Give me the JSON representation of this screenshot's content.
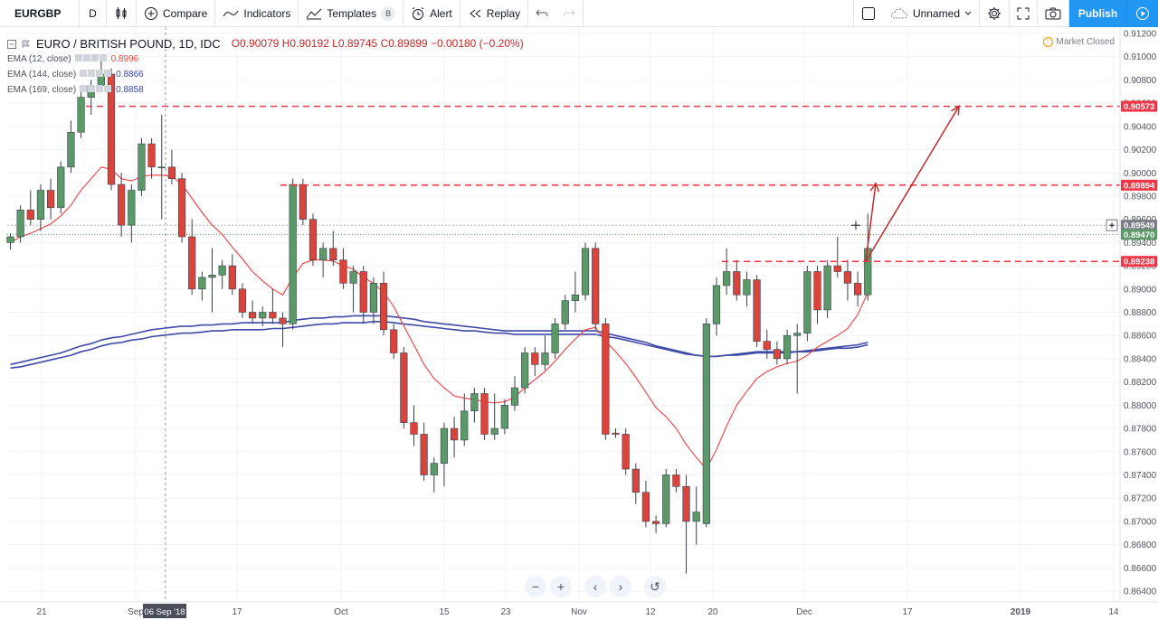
{
  "toolbar": {
    "symbol": "EURGBP",
    "interval": "D",
    "compare": "Compare",
    "indicators": "Indicators",
    "templates": "Templates",
    "templates_badge": "B",
    "alert": "Alert",
    "replay": "Replay",
    "layout_name": "Unnamed",
    "publish": "Publish"
  },
  "legend": {
    "title": "EURO / BRITISH POUND, 1D, IDC",
    "open": "O0.90079",
    "high": "H0.90192",
    "low": "L0.89745",
    "close": "C0.89899",
    "change": "−0.00180 (−0.20%)",
    "ema": [
      {
        "label": "EMA (12, close)",
        "value": "0.8996",
        "color": "#f44336"
      },
      {
        "label": "EMA (144, close)",
        "value": "0.8866",
        "color": "#3949ab"
      },
      {
        "label": "EMA (169, close)",
        "value": "0.8858",
        "color": "#3949ab"
      }
    ]
  },
  "market_status": "Market Closed",
  "colors": {
    "up": "#5b9a68",
    "down": "#d9453d",
    "ema12": "#f23e3e",
    "ema_long": "#3e4aa8",
    "accent": "#2196f3",
    "level": "#f23645"
  },
  "chart_data": {
    "type": "candlestick",
    "symbol": "EURGBP",
    "ylim": [
      0.864,
      0.912
    ],
    "y_ticks": [
      "0.86400",
      "0.86600",
      "0.86800",
      "0.87000",
      "0.87200",
      "0.87400",
      "0.87600",
      "0.87800",
      "0.88000",
      "0.88200",
      "0.88400",
      "0.88600",
      "0.88800",
      "0.89000",
      "0.89200",
      "0.89400",
      "0.89600",
      "0.89800",
      "0.90000",
      "0.90200",
      "0.90400",
      "0.90600",
      "0.90800",
      "0.91000",
      "0.91200"
    ],
    "x_ticks": [
      "21",
      "Sep",
      "17",
      "Oct",
      "15",
      "23",
      "Nov",
      "12",
      "20",
      "Dec",
      "17",
      "2019",
      "14"
    ],
    "crosshair_date": "06 Sep '18",
    "price_labels": [
      {
        "text": "0.90573",
        "value": 0.90573,
        "color": "#f23645"
      },
      {
        "text": "0.89894",
        "value": 0.89894,
        "color": "#f23645"
      },
      {
        "text": "0.89549",
        "value": 0.89549,
        "color": "#787b86"
      },
      {
        "text": "0.89470",
        "value": 0.8947,
        "color": "#5b9a68"
      },
      {
        "text": "0.89238",
        "value": 0.89238,
        "color": "#f23645"
      }
    ],
    "levels": [
      0.90573,
      0.89894,
      0.89238
    ],
    "candles": [
      [
        0.894,
        0.8948,
        0.8934,
        0.8945
      ],
      [
        0.8945,
        0.8972,
        0.894,
        0.8968
      ],
      [
        0.8968,
        0.8985,
        0.8955,
        0.896
      ],
      [
        0.896,
        0.899,
        0.895,
        0.8985
      ],
      [
        0.8985,
        0.8995,
        0.896,
        0.897
      ],
      [
        0.897,
        0.901,
        0.8965,
        0.9005
      ],
      [
        0.9005,
        0.9045,
        0.9,
        0.9035
      ],
      [
        0.9035,
        0.907,
        0.903,
        0.9065
      ],
      [
        0.9065,
        0.908,
        0.905,
        0.9075
      ],
      [
        0.9075,
        0.91,
        0.907,
        0.9085
      ],
      [
        0.9085,
        0.909,
        0.8985,
        0.899
      ],
      [
        0.899,
        0.9,
        0.8945,
        0.8955
      ],
      [
        0.8955,
        0.899,
        0.894,
        0.8985
      ],
      [
        0.8985,
        0.903,
        0.898,
        0.9025
      ],
      [
        0.9025,
        0.903,
        0.8995,
        0.9005
      ],
      [
        0.9005,
        0.905,
        0.896,
        0.9005
      ],
      [
        0.9005,
        0.902,
        0.899,
        0.8995
      ],
      [
        0.8995,
        0.9,
        0.894,
        0.8945
      ],
      [
        0.8945,
        0.896,
        0.8895,
        0.89
      ],
      [
        0.89,
        0.8915,
        0.889,
        0.891
      ],
      [
        0.891,
        0.8935,
        0.888,
        0.8912
      ],
      [
        0.8912,
        0.8925,
        0.89,
        0.892
      ],
      [
        0.892,
        0.893,
        0.8895,
        0.89
      ],
      [
        0.89,
        0.8905,
        0.8875,
        0.888
      ],
      [
        0.888,
        0.889,
        0.887,
        0.8875
      ],
      [
        0.8875,
        0.8885,
        0.8868,
        0.888
      ],
      [
        0.888,
        0.89,
        0.887,
        0.8875
      ],
      [
        0.8875,
        0.888,
        0.885,
        0.887
      ],
      [
        0.887,
        0.8995,
        0.8865,
        0.899
      ],
      [
        0.899,
        0.8995,
        0.8955,
        0.896
      ],
      [
        0.896,
        0.8965,
        0.892,
        0.8925
      ],
      [
        0.8925,
        0.894,
        0.891,
        0.8935
      ],
      [
        0.8935,
        0.895,
        0.892,
        0.8925
      ],
      [
        0.8925,
        0.8935,
        0.89,
        0.8905
      ],
      [
        0.8905,
        0.892,
        0.888,
        0.8915
      ],
      [
        0.8915,
        0.892,
        0.887,
        0.888
      ],
      [
        0.888,
        0.891,
        0.887,
        0.8905
      ],
      [
        0.8905,
        0.8915,
        0.886,
        0.8865
      ],
      [
        0.8865,
        0.887,
        0.884,
        0.8845
      ],
      [
        0.8845,
        0.885,
        0.878,
        0.8785
      ],
      [
        0.8785,
        0.88,
        0.8765,
        0.8775
      ],
      [
        0.8775,
        0.8785,
        0.8735,
        0.874
      ],
      [
        0.874,
        0.8755,
        0.8725,
        0.875
      ],
      [
        0.875,
        0.8785,
        0.873,
        0.878
      ],
      [
        0.878,
        0.879,
        0.8755,
        0.877
      ],
      [
        0.877,
        0.881,
        0.8765,
        0.8795
      ],
      [
        0.8795,
        0.8815,
        0.8785,
        0.881
      ],
      [
        0.881,
        0.8815,
        0.877,
        0.8775
      ],
      [
        0.8775,
        0.881,
        0.877,
        0.878
      ],
      [
        0.878,
        0.8805,
        0.8775,
        0.88
      ],
      [
        0.88,
        0.8825,
        0.8795,
        0.8815
      ],
      [
        0.8815,
        0.885,
        0.881,
        0.8845
      ],
      [
        0.8845,
        0.885,
        0.8825,
        0.8835
      ],
      [
        0.8835,
        0.886,
        0.883,
        0.8845
      ],
      [
        0.8845,
        0.8875,
        0.884,
        0.887
      ],
      [
        0.887,
        0.8895,
        0.8865,
        0.889
      ],
      [
        0.889,
        0.8915,
        0.888,
        0.8895
      ],
      [
        0.8895,
        0.894,
        0.889,
        0.8935
      ],
      [
        0.8935,
        0.894,
        0.8865,
        0.887
      ],
      [
        0.887,
        0.8875,
        0.877,
        0.8775
      ],
      [
        0.8776,
        0.878,
        0.8772,
        0.8775
      ],
      [
        0.8775,
        0.878,
        0.874,
        0.8745
      ],
      [
        0.8745,
        0.875,
        0.8715,
        0.8725
      ],
      [
        0.8725,
        0.8735,
        0.8695,
        0.87
      ],
      [
        0.87,
        0.8705,
        0.869,
        0.8698
      ],
      [
        0.8698,
        0.8745,
        0.8695,
        0.874
      ],
      [
        0.874,
        0.8745,
        0.8725,
        0.873
      ],
      [
        0.873,
        0.874,
        0.8655,
        0.87
      ],
      [
        0.87,
        0.873,
        0.868,
        0.8708
      ],
      [
        0.8698,
        0.8875,
        0.8695,
        0.887
      ],
      [
        0.887,
        0.891,
        0.886,
        0.8903
      ],
      [
        0.8903,
        0.8935,
        0.8895,
        0.8915
      ],
      [
        0.8915,
        0.8925,
        0.889,
        0.8895
      ],
      [
        0.8895,
        0.8915,
        0.8885,
        0.8908
      ],
      [
        0.8908,
        0.8912,
        0.885,
        0.8855
      ],
      [
        0.8855,
        0.8865,
        0.884,
        0.8848
      ],
      [
        0.8848,
        0.8855,
        0.8835,
        0.884
      ],
      [
        0.884,
        0.8865,
        0.8835,
        0.886
      ],
      [
        0.886,
        0.887,
        0.881,
        0.8862
      ],
      [
        0.8862,
        0.892,
        0.8855,
        0.8915
      ],
      [
        0.8915,
        0.892,
        0.887,
        0.8882
      ],
      [
        0.8882,
        0.8925,
        0.8875,
        0.892
      ],
      [
        0.892,
        0.8945,
        0.891,
        0.8915
      ],
      [
        0.8915,
        0.8925,
        0.889,
        0.8905
      ],
      [
        0.8905,
        0.8915,
        0.8885,
        0.8895
      ],
      [
        0.8895,
        0.8965,
        0.889,
        0.8935
      ]
    ],
    "ema12": [
      0.894,
      0.8945,
      0.8948,
      0.8952,
      0.8956,
      0.8963,
      0.8972,
      0.8985,
      0.8995,
      0.9005,
      0.9003,
      0.8995,
      0.8993,
      0.8997,
      0.8998,
      0.8998,
      0.8997,
      0.899,
      0.8978,
      0.8966,
      0.8955,
      0.8947,
      0.8936,
      0.8926,
      0.8915,
      0.8907,
      0.89,
      0.8895,
      0.891,
      0.8922,
      0.8925,
      0.8925,
      0.8924,
      0.892,
      0.8917,
      0.891,
      0.8905,
      0.8897,
      0.8885,
      0.8868,
      0.8852,
      0.8835,
      0.8823,
      0.8815,
      0.8808,
      0.8806,
      0.8805,
      0.8803,
      0.8802,
      0.8803,
      0.8807,
      0.8815,
      0.8822,
      0.8829,
      0.8838,
      0.8848,
      0.8857,
      0.8865,
      0.8867,
      0.8855,
      0.8846,
      0.8836,
      0.8824,
      0.8811,
      0.8798,
      0.879,
      0.878,
      0.8766,
      0.8755,
      0.8745,
      0.8762,
      0.8782,
      0.88,
      0.8812,
      0.8823,
      0.8829,
      0.8833,
      0.8836,
      0.8838,
      0.8843,
      0.885,
      0.8855,
      0.886,
      0.8866,
      0.8878,
      0.8897
    ],
    "ema144": [
      0.8835,
      0.8837,
      0.8839,
      0.8841,
      0.8843,
      0.8845,
      0.8848,
      0.8851,
      0.8853,
      0.8856,
      0.8858,
      0.8859,
      0.8861,
      0.8863,
      0.8865,
      0.8866,
      0.8867,
      0.8868,
      0.8868,
      0.8869,
      0.8869,
      0.887,
      0.887,
      0.8871,
      0.8871,
      0.8871,
      0.8871,
      0.8871,
      0.8873,
      0.8874,
      0.8875,
      0.8875,
      0.8876,
      0.8876,
      0.8877,
      0.8877,
      0.8877,
      0.8877,
      0.8876,
      0.8875,
      0.8874,
      0.8872,
      0.8871,
      0.887,
      0.8869,
      0.8868,
      0.8867,
      0.8866,
      0.8865,
      0.8864,
      0.8864,
      0.8864,
      0.8864,
      0.8864,
      0.8864,
      0.8864,
      0.8864,
      0.8864,
      0.8864,
      0.8862,
      0.886,
      0.8858,
      0.8856,
      0.8854,
      0.8851,
      0.8849,
      0.8847,
      0.8845,
      0.8843,
      0.8842,
      0.8842,
      0.8843,
      0.8844,
      0.8845,
      0.8846,
      0.8846,
      0.8846,
      0.8846,
      0.8846,
      0.8847,
      0.8848,
      0.8849,
      0.885,
      0.8851,
      0.8852,
      0.8854
    ],
    "ema169": [
      0.8832,
      0.8833,
      0.8835,
      0.8837,
      0.8839,
      0.8841,
      0.8843,
      0.8846,
      0.8848,
      0.8851,
      0.8853,
      0.8854,
      0.8856,
      0.8857,
      0.8859,
      0.886,
      0.8861,
      0.8862,
      0.8862,
      0.8863,
      0.8864,
      0.8864,
      0.8865,
      0.8865,
      0.8865,
      0.8865,
      0.8866,
      0.8866,
      0.8867,
      0.8868,
      0.8869,
      0.887,
      0.887,
      0.8871,
      0.8871,
      0.8871,
      0.8872,
      0.8872,
      0.8871,
      0.887,
      0.8869,
      0.8868,
      0.8867,
      0.8866,
      0.8865,
      0.8864,
      0.8864,
      0.8863,
      0.8862,
      0.8862,
      0.8861,
      0.8861,
      0.8861,
      0.8861,
      0.8861,
      0.8861,
      0.8861,
      0.8861,
      0.8861,
      0.8859,
      0.8858,
      0.8856,
      0.8854,
      0.8852,
      0.885,
      0.8848,
      0.8846,
      0.8844,
      0.8843,
      0.8842,
      0.8842,
      0.8843,
      0.8843,
      0.8844,
      0.8845,
      0.8845,
      0.8845,
      0.8845,
      0.8846,
      0.8846,
      0.8847,
      0.8848,
      0.8849,
      0.8849,
      0.885,
      0.8852
    ]
  }
}
